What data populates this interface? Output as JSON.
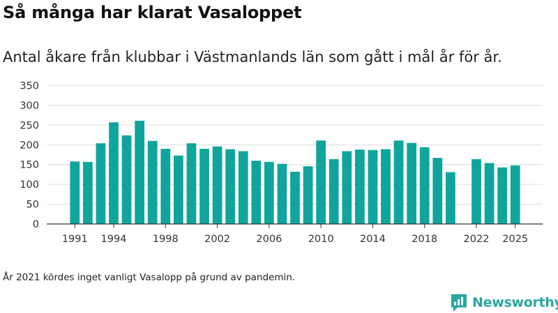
{
  "header": {
    "title": "Så många har klarat Vasaloppet",
    "subtitle": "Antal åkare från klubbar i Västmanlands län som gått i mål år för år."
  },
  "footer": {
    "note": "År 2021 kördes inget vanligt Vasalopp på grund av pandemin.",
    "brand": "Newsworthy"
  },
  "colors": {
    "bar": "#0fa59c",
    "grid": "#dcdcdc",
    "axis": "#333333",
    "brand": "#2ba6a0"
  },
  "icons": {
    "brand_logo": "newsworthy-logo-icon"
  },
  "chart_data": {
    "type": "bar",
    "title": "Så många har klarat Vasaloppet",
    "subtitle": "Antal åkare från klubbar i Västmanlands län som gått i mål år för år.",
    "categories": [
      1991,
      1992,
      1993,
      1994,
      1995,
      1996,
      1997,
      1998,
      1999,
      2000,
      2001,
      2002,
      2003,
      2004,
      2005,
      2006,
      2007,
      2008,
      2009,
      2010,
      2011,
      2012,
      2013,
      2014,
      2015,
      2016,
      2017,
      2018,
      2019,
      2020,
      2021,
      2022,
      2023,
      2024,
      2025
    ],
    "values": [
      158,
      157,
      204,
      257,
      224,
      261,
      210,
      190,
      173,
      204,
      190,
      196,
      189,
      184,
      160,
      157,
      152,
      132,
      146,
      211,
      164,
      184,
      188,
      187,
      189,
      211,
      205,
      194,
      167,
      131,
      null,
      164,
      154,
      143,
      148
    ],
    "x_tick_labels": [
      "1991",
      "1994",
      "1998",
      "2002",
      "2006",
      "2010",
      "2014",
      "2018",
      "2022",
      "2025"
    ],
    "y_ticks": [
      0,
      50,
      100,
      150,
      200,
      250,
      300,
      350
    ],
    "ylim": [
      0,
      350
    ],
    "xlabel": "",
    "ylabel": "",
    "grid": true,
    "legend": "none"
  }
}
